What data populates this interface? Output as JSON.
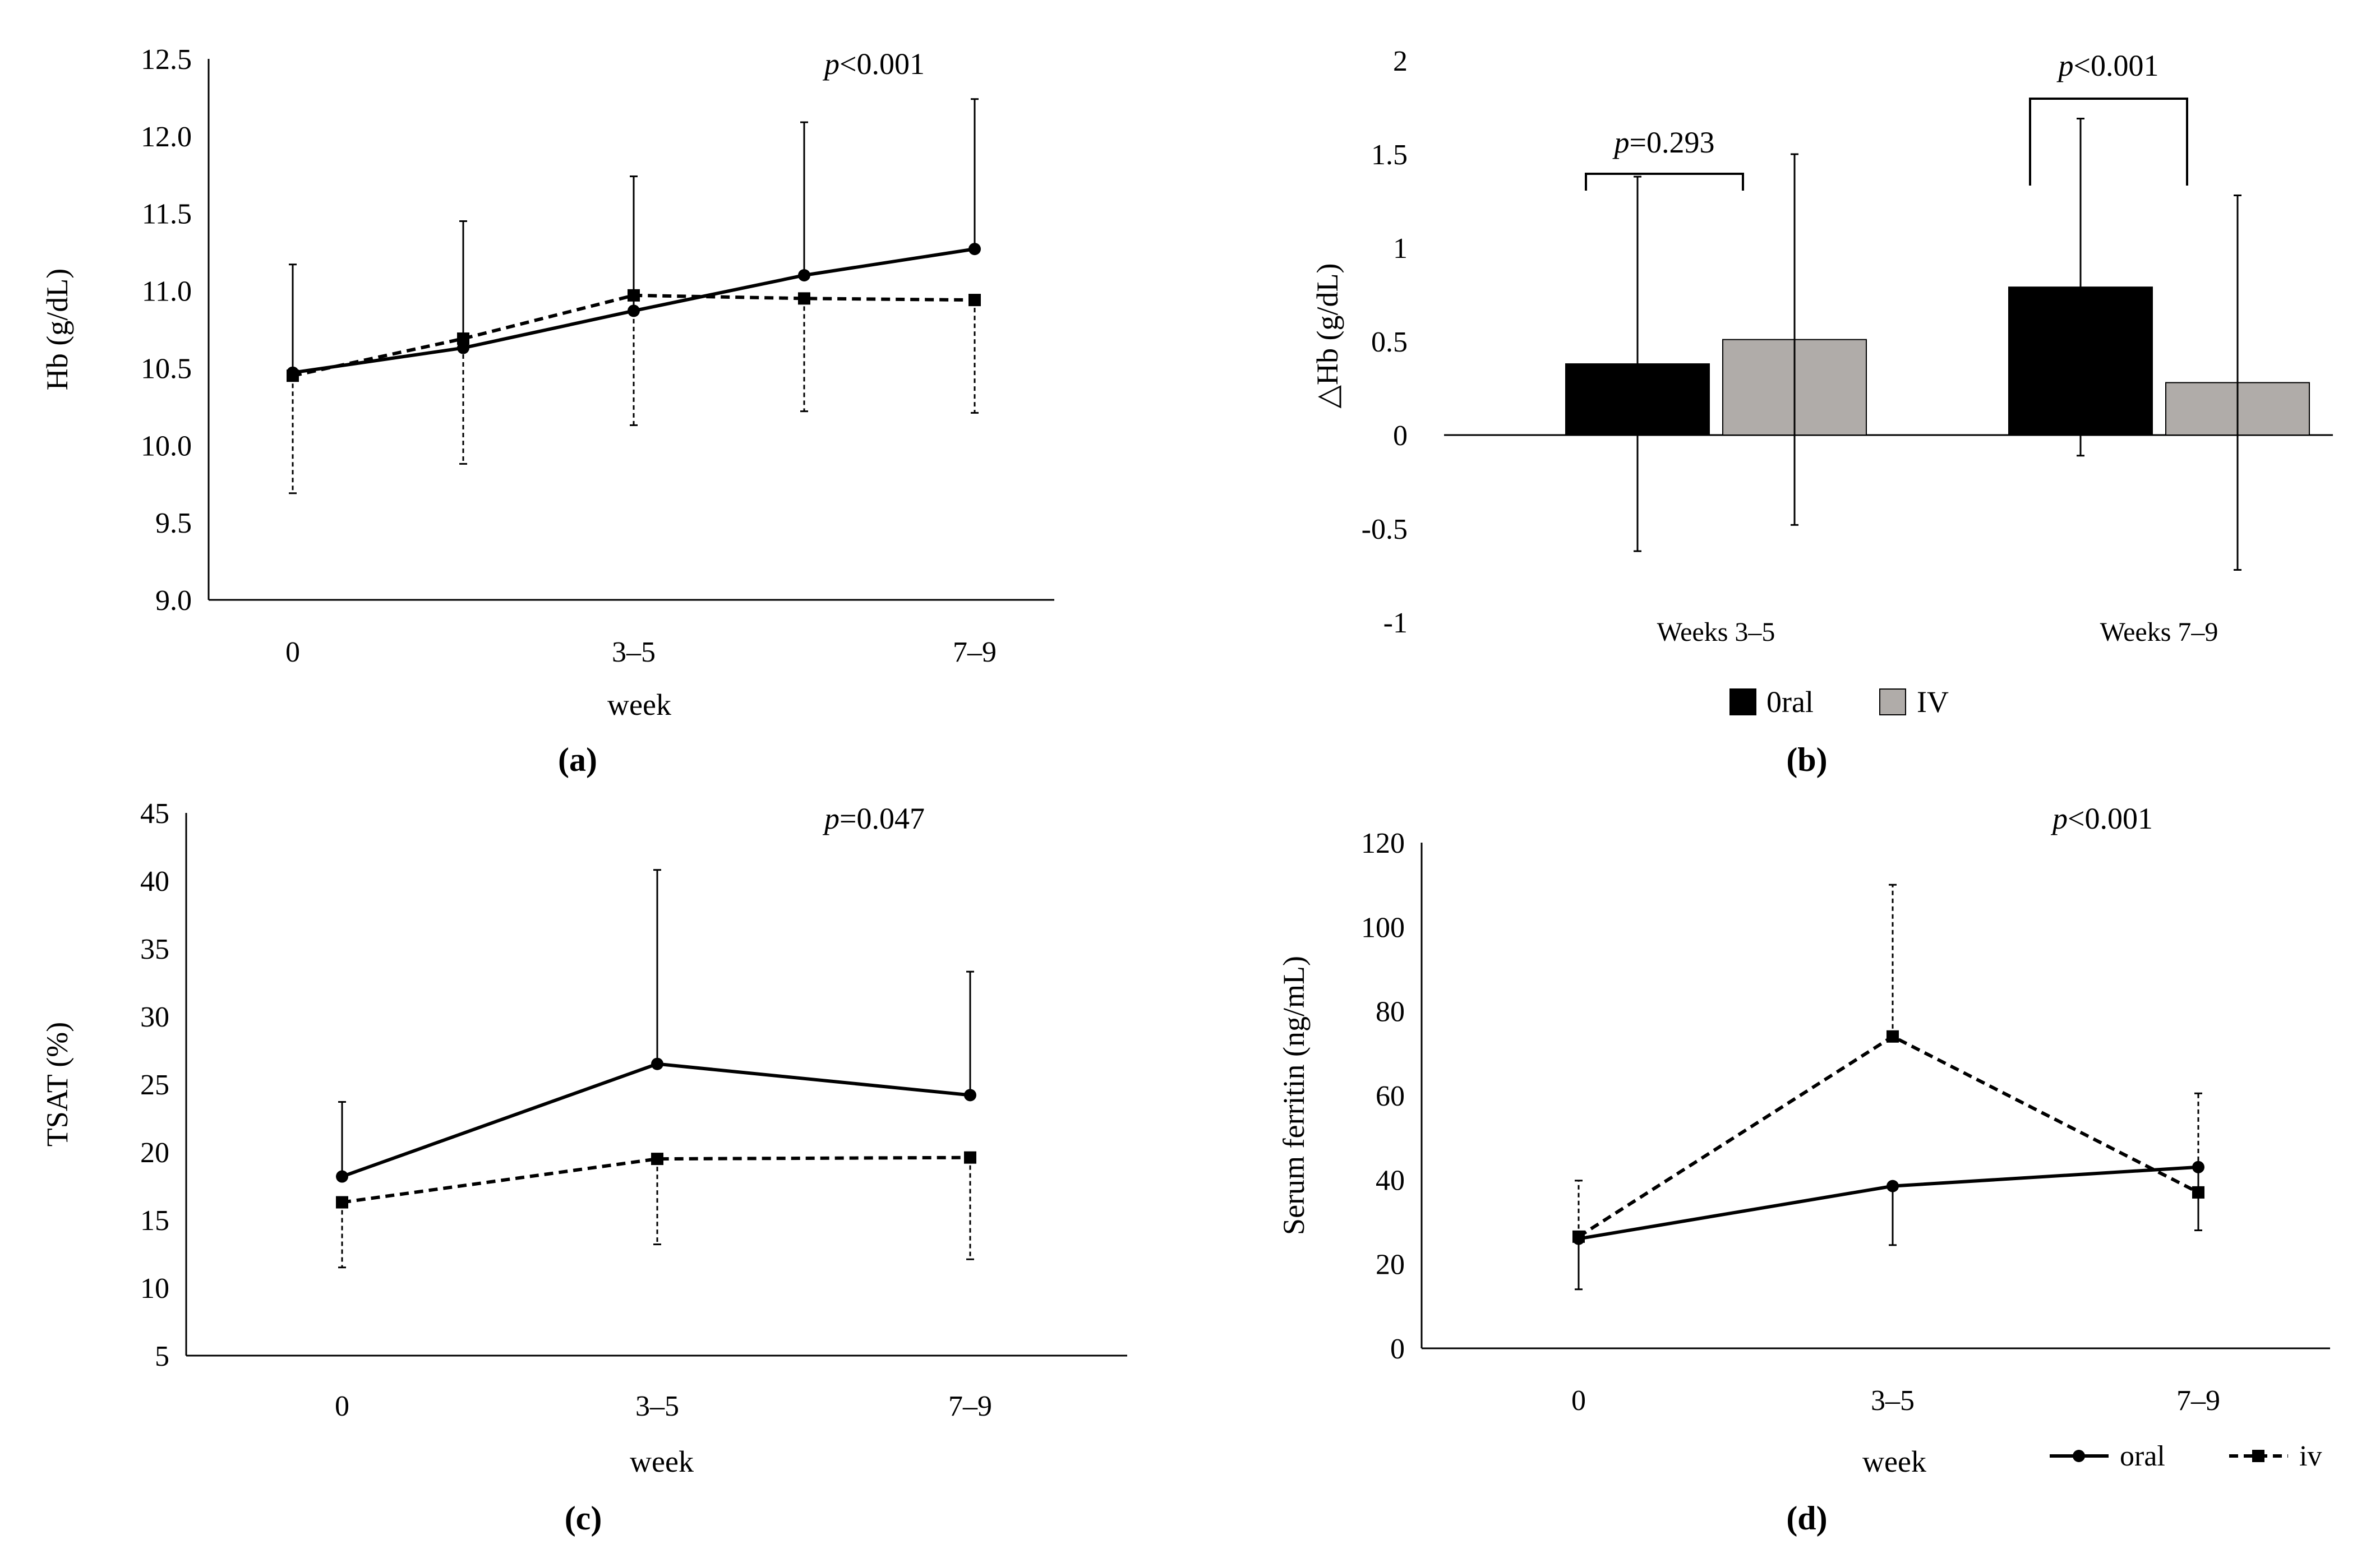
{
  "colors": {
    "oral_bar": "#000000",
    "iv_bar": "#b0aca9",
    "line": "#000000",
    "background": "#ffffff"
  },
  "chart_data": [
    {
      "panel": "a",
      "type": "line",
      "panel_label": "(a)",
      "title": "",
      "xlabel": "week",
      "ylabel": "Hb (g/dL)",
      "annotation": {
        "p_symbol": "p",
        "p_text": "<0.001"
      },
      "ylim": [
        9.0,
        12.5
      ],
      "yticks": [
        "9.0",
        "9.5",
        "10.0",
        "10.5",
        "11.0",
        "11.5",
        "12.0",
        "12.5"
      ],
      "x_tick_labels": [
        "0",
        "3–5",
        "7–9"
      ],
      "x": [
        0,
        1,
        2,
        3,
        4
      ],
      "series": [
        {
          "style": "solid",
          "marker": "circle",
          "values": [
            10.47,
            10.63,
            10.87,
            11.1,
            11.27
          ],
          "error_upper": [
            11.17,
            11.45,
            11.74,
            12.09,
            12.24
          ]
        },
        {
          "style": "dashed",
          "marker": "square",
          "values": [
            10.45,
            10.69,
            10.97,
            10.95,
            10.94
          ],
          "error_lower": [
            9.69,
            9.88,
            10.13,
            10.22,
            10.21
          ]
        }
      ]
    },
    {
      "panel": "b",
      "type": "bar",
      "panel_label": "(b)",
      "title": "",
      "ylabel": "△Hb (g/dL)",
      "categories": [
        "Weeks 3–5",
        "Weeks 7–9"
      ],
      "ylim": [
        -1,
        2
      ],
      "yticks": [
        "-1",
        "-0.5",
        "0",
        "0.5",
        "1",
        "1.5",
        "2"
      ],
      "series": [
        {
          "name": "0ral",
          "values": [
            0.38,
            0.79
          ],
          "error": [
            1.0,
            0.9
          ]
        },
        {
          "name": "IV",
          "values": [
            0.51,
            0.28
          ],
          "error": [
            0.99,
            1.0
          ]
        }
      ],
      "comparisons": [
        {
          "p_symbol": "p",
          "p_text": "=0.293"
        },
        {
          "p_symbol": "p",
          "p_text": "<0.001"
        }
      ],
      "legend": "bottom"
    },
    {
      "panel": "c",
      "type": "line",
      "panel_label": "(c)",
      "title": "",
      "xlabel": "week",
      "ylabel": "TSAT (%)",
      "annotation": {
        "p_symbol": "p",
        "p_text": "=0.047"
      },
      "ylim": [
        5,
        45
      ],
      "yticks": [
        "5",
        "10",
        "15",
        "20",
        "25",
        "30",
        "35",
        "40",
        "45"
      ],
      "x_tick_labels": [
        "0",
        "3–5",
        "7–9"
      ],
      "x": [
        0,
        1,
        2
      ],
      "series": [
        {
          "style": "solid",
          "marker": "circle",
          "values": [
            18.2,
            26.5,
            24.2
          ],
          "error_upper": [
            23.7,
            40.8,
            33.3
          ]
        },
        {
          "style": "dashed",
          "marker": "square",
          "values": [
            16.3,
            19.5,
            19.6
          ],
          "error_lower": [
            11.5,
            13.2,
            12.1
          ]
        }
      ]
    },
    {
      "panel": "d",
      "type": "line",
      "panel_label": "(d)",
      "title": "",
      "xlabel": "week",
      "ylabel": "Serum ferritin (ng/mL)",
      "annotation": {
        "p_symbol": "p",
        "p_text": "<0.001"
      },
      "ylim": [
        0,
        120
      ],
      "yticks": [
        "0",
        "20",
        "40",
        "60",
        "80",
        "100",
        "120"
      ],
      "x_tick_labels": [
        "0",
        "3–5",
        "7–9"
      ],
      "x": [
        0,
        1,
        2
      ],
      "series": [
        {
          "name": "oral",
          "style": "solid",
          "marker": "circle",
          "values": [
            26.0,
            38.5,
            43.0
          ],
          "error_lower": [
            14.0,
            24.5,
            28.0
          ]
        },
        {
          "name": "iv",
          "style": "dashed",
          "marker": "square",
          "values": [
            26.5,
            74.0,
            37.0
          ],
          "error_upper": [
            39.8,
            110.0,
            60.5
          ]
        }
      ],
      "legend": "bottom-right"
    }
  ]
}
